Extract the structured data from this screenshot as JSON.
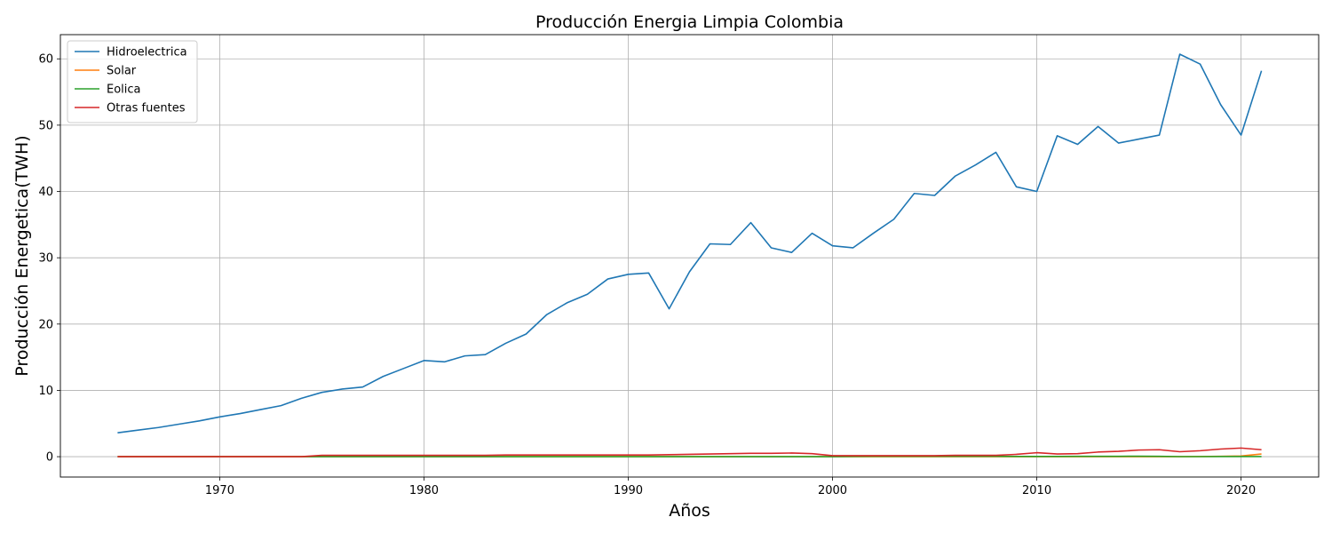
{
  "chart_data": {
    "type": "line",
    "title": "Producción Energia Limpia Colombia",
    "xlabel": "Años",
    "ylabel": "Producción Energetica(TWH)",
    "xlim": [
      1962.2,
      2023.8
    ],
    "ylim": [
      -3.07,
      63.65
    ],
    "xticks": [
      1970,
      1980,
      1990,
      2000,
      2010,
      2020
    ],
    "yticks": [
      0,
      10,
      20,
      30,
      40,
      50,
      60
    ],
    "grid": true,
    "legend_position": "top-left",
    "x": [
      1965,
      1966,
      1967,
      1968,
      1969,
      1970,
      1971,
      1972,
      1973,
      1974,
      1975,
      1976,
      1977,
      1978,
      1979,
      1980,
      1981,
      1982,
      1983,
      1984,
      1985,
      1986,
      1987,
      1988,
      1989,
      1990,
      1991,
      1992,
      1993,
      1994,
      1995,
      1996,
      1997,
      1998,
      1999,
      2000,
      2001,
      2002,
      2003,
      2004,
      2005,
      2006,
      2007,
      2008,
      2009,
      2010,
      2011,
      2012,
      2013,
      2014,
      2015,
      2016,
      2017,
      2018,
      2019,
      2020,
      2021
    ],
    "series": [
      {
        "name": "Hidroelectrica",
        "color": "#1f77b4",
        "values": [
          3.6,
          4.0,
          4.4,
          4.9,
          5.4,
          6.0,
          6.5,
          7.1,
          7.7,
          8.8,
          9.7,
          10.2,
          10.5,
          12.1,
          13.3,
          14.5,
          14.3,
          15.2,
          15.4,
          17.1,
          18.5,
          21.4,
          23.2,
          24.5,
          26.8,
          27.5,
          27.7,
          22.3,
          27.9,
          32.1,
          32.0,
          35.3,
          31.5,
          30.8,
          33.7,
          31.8,
          31.5,
          33.7,
          35.8,
          39.7,
          39.4,
          42.3,
          44.0,
          45.9,
          40.7,
          40.0,
          48.4,
          47.1,
          49.8,
          47.3,
          47.9,
          48.5,
          60.7,
          59.2,
          53.1,
          48.5,
          58.2
        ]
      },
      {
        "name": "Solar",
        "color": "#ff7f0e",
        "values": [
          0,
          0,
          0,
          0,
          0,
          0,
          0,
          0,
          0,
          0,
          0,
          0,
          0,
          0,
          0,
          0,
          0,
          0,
          0,
          0,
          0,
          0,
          0,
          0,
          0,
          0,
          0,
          0,
          0,
          0,
          0,
          0,
          0,
          0,
          0,
          0,
          0,
          0,
          0,
          0,
          0,
          0,
          0,
          0,
          0,
          0,
          0,
          0,
          0,
          0,
          0,
          0,
          0,
          0.02,
          0.05,
          0.1,
          0.4
        ]
      },
      {
        "name": "Eolica",
        "color": "#2ca02c",
        "values": [
          0,
          0,
          0,
          0,
          0,
          0,
          0,
          0,
          0,
          0,
          0,
          0,
          0,
          0,
          0,
          0,
          0,
          0,
          0,
          0,
          0,
          0,
          0,
          0,
          0,
          0,
          0,
          0,
          0,
          0,
          0,
          0,
          0,
          0,
          0,
          0,
          0.03,
          0.05,
          0.05,
          0.05,
          0.06,
          0.06,
          0.05,
          0.05,
          0.04,
          0.04,
          0.04,
          0.05,
          0.05,
          0.06,
          0.07,
          0.05,
          0.01,
          0.01,
          0.02,
          0.02,
          0.02
        ]
      },
      {
        "name": "Otras fuentes",
        "color": "#d62728",
        "values": [
          0,
          0,
          0,
          0,
          0,
          0,
          0,
          0,
          0,
          0,
          0.2,
          0.2,
          0.2,
          0.2,
          0.2,
          0.2,
          0.2,
          0.2,
          0.2,
          0.25,
          0.25,
          0.25,
          0.25,
          0.25,
          0.25,
          0.25,
          0.25,
          0.3,
          0.35,
          0.4,
          0.45,
          0.5,
          0.5,
          0.55,
          0.45,
          0.15,
          0.15,
          0.15,
          0.15,
          0.15,
          0.15,
          0.2,
          0.2,
          0.2,
          0.35,
          0.6,
          0.4,
          0.45,
          0.7,
          0.8,
          1.0,
          1.05,
          0.75,
          0.9,
          1.15,
          1.3,
          1.05
        ]
      }
    ]
  }
}
